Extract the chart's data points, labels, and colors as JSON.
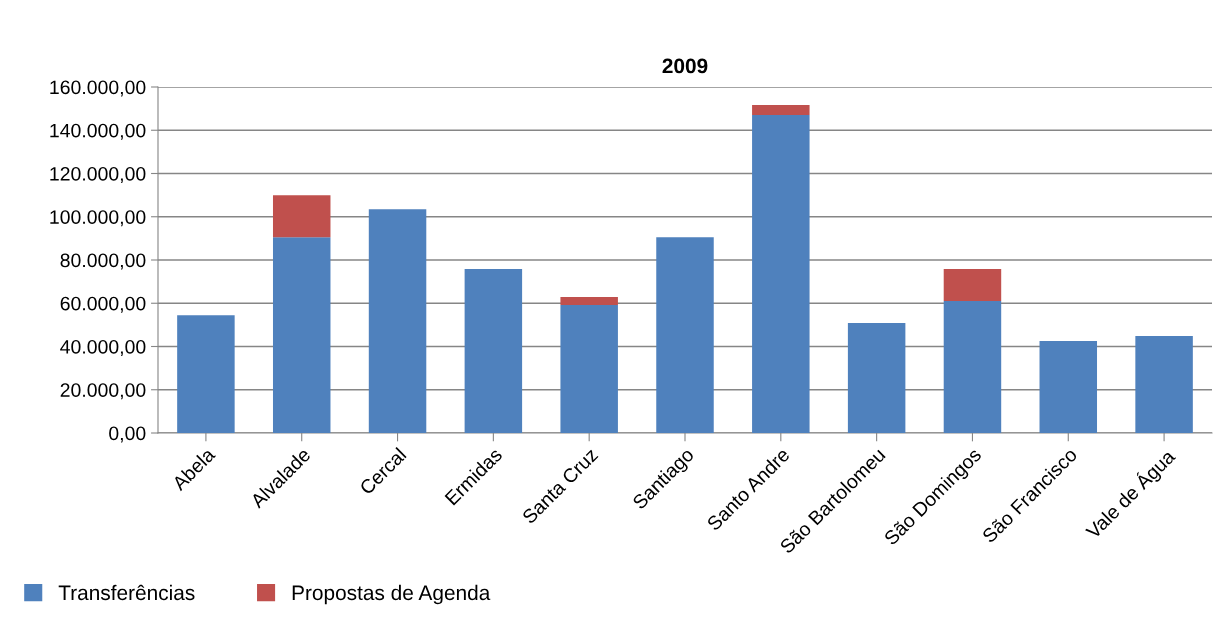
{
  "chart_data": {
    "type": "bar",
    "title": "2009",
    "stacked": true,
    "categories": [
      "Abela",
      "Alvalade",
      "Cercal",
      "Ermidas",
      "Santa Cruz",
      "Santiago",
      "Santo Andre",
      "São Bartolomeu",
      "São Domingos",
      "São Francisco",
      "Vale de Água"
    ],
    "series": [
      {
        "name": "Transferências",
        "color": "#4f81bd",
        "values": [
          54500,
          90500,
          103500,
          75800,
          59200,
          90500,
          147000,
          50900,
          61000,
          42500,
          44900
        ]
      },
      {
        "name": "Propostas de Agenda",
        "color": "#c0504d",
        "values": [
          null,
          19500,
          null,
          null,
          3700,
          null,
          4700,
          null,
          14800,
          null,
          null
        ]
      }
    ],
    "ylim": [
      0,
      160000
    ],
    "yticks": [
      {
        "value": 0,
        "label": "0,00"
      },
      {
        "value": 20000,
        "label": "20.000,00"
      },
      {
        "value": 40000,
        "label": "40.000,00"
      },
      {
        "value": 60000,
        "label": "60.000,00"
      },
      {
        "value": 80000,
        "label": "80.000,00"
      },
      {
        "value": 100000,
        "label": "100.000,00"
      },
      {
        "value": 120000,
        "label": "120.000,00"
      },
      {
        "value": 140000,
        "label": "140.000,00"
      },
      {
        "value": 160000,
        "label": "160.000,00"
      }
    ],
    "grid": "y",
    "legend": "bottom left"
  }
}
